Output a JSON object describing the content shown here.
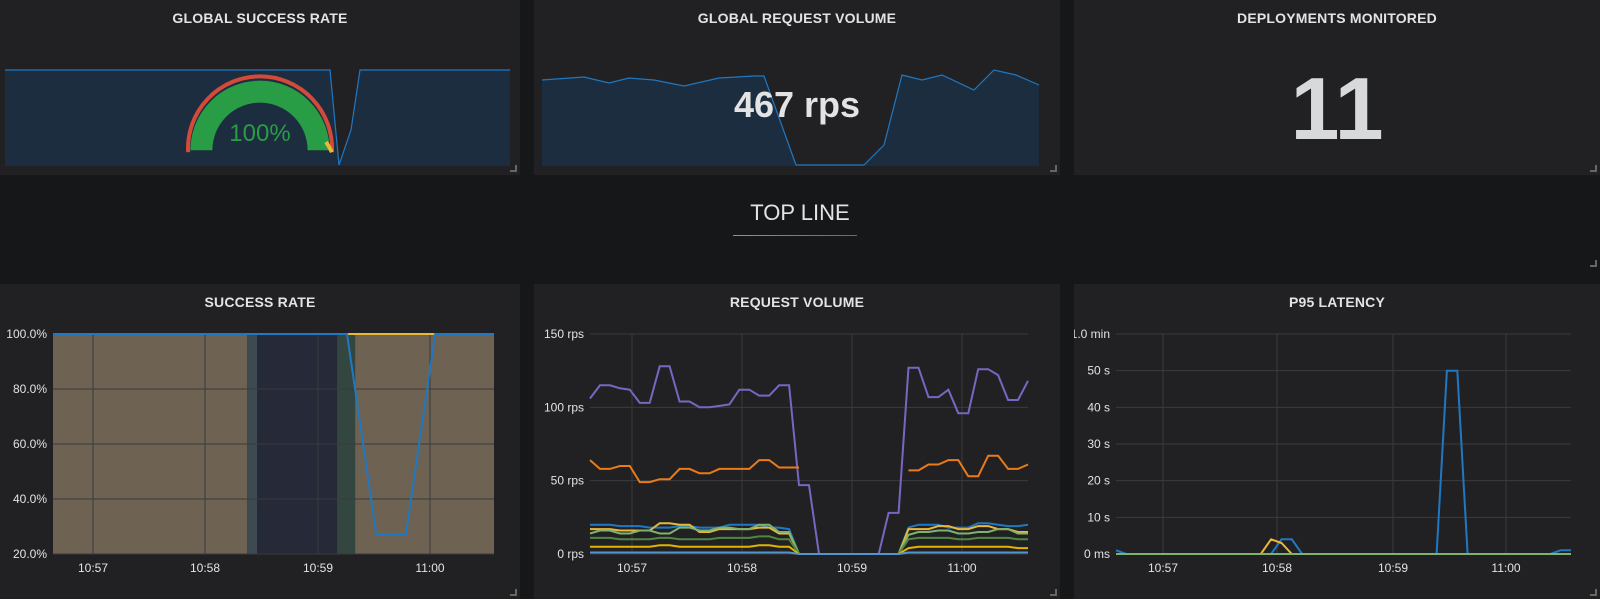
{
  "panels": {
    "global_success_rate": {
      "title": "GLOBAL SUCCESS RATE",
      "value": "100%"
    },
    "global_request_volume": {
      "title": "GLOBAL REQUEST VOLUME",
      "value": "467 rps"
    },
    "deployments_monitored": {
      "title": "DEPLOYMENTS MONITORED",
      "value": "11"
    },
    "success_rate": {
      "title": "SUCCESS RATE"
    },
    "request_volume": {
      "title": "REQUEST VOLUME"
    },
    "p95_latency": {
      "title": "P95 LATENCY"
    }
  },
  "row": {
    "title": "TOP LINE"
  },
  "colors": {
    "panel_bg": "#212124",
    "page_bg": "#161719",
    "blue": "#1f78c1",
    "green": "#299c46",
    "red": "#d44a3a",
    "orange": "#eb7b18",
    "yellow": "#eab839",
    "purple": "#7a65c1",
    "lightgreen": "#7eb26d"
  },
  "chart_data": [
    {
      "type": "area",
      "title": "SUCCESS RATE",
      "x_ticks": [
        "10:57",
        "10:58",
        "10:59",
        "11:00"
      ],
      "y_ticks": [
        "100.0%",
        "80.0%",
        "60.0%",
        "40.0%",
        "20.0%"
      ],
      "ylim": [
        20,
        100
      ],
      "series": [
        {
          "color": "#eab839",
          "values": [
            100,
            100,
            100,
            100,
            100,
            100,
            100,
            100,
            100,
            100,
            100,
            100,
            100,
            100,
            100,
            100
          ]
        },
        {
          "color": "#1f78c1",
          "values": [
            100,
            100,
            100,
            100,
            100,
            100,
            100,
            100,
            100,
            100,
            100,
            27,
            27,
            100,
            100,
            100
          ]
        }
      ]
    },
    {
      "type": "line",
      "title": "REQUEST VOLUME",
      "x_ticks": [
        "10:57",
        "10:58",
        "10:59",
        "11:00"
      ],
      "y_ticks": [
        "150 rps",
        "100 rps",
        "50 rps",
        "0 rps"
      ],
      "ylim": [
        0,
        150
      ],
      "series": [
        {
          "color": "#7a65c1",
          "values": [
            106,
            115,
            115,
            113,
            112,
            103,
            103,
            128,
            128,
            104,
            104,
            100,
            100,
            101,
            102,
            112,
            112,
            108,
            108,
            115,
            115,
            47,
            47,
            0,
            0,
            0,
            0,
            0,
            0,
            0,
            28,
            28,
            127,
            127,
            107,
            107,
            112,
            96,
            96,
            126,
            126,
            122,
            105,
            105,
            118
          ]
        },
        {
          "color": "#eb7b18",
          "values": [
            64,
            58,
            58,
            60,
            60,
            49,
            49,
            51,
            51,
            58,
            58,
            55,
            55,
            58,
            58,
            58,
            58,
            64,
            64,
            59,
            59,
            59,
            null,
            null,
            null,
            null,
            null,
            null,
            null,
            null,
            null,
            null,
            57,
            57,
            61,
            61,
            64,
            64,
            53,
            53,
            67,
            67,
            58,
            58,
            61
          ]
        },
        {
          "color": "#1f78c1",
          "values": [
            20,
            20,
            20,
            19,
            19,
            19,
            18,
            18,
            18,
            19,
            19,
            18,
            18,
            18,
            20,
            20,
            20,
            20,
            18,
            18,
            17,
            0,
            0,
            0,
            0,
            0,
            0,
            0,
            0,
            0,
            0,
            0,
            18,
            20,
            20,
            20,
            18,
            18,
            18,
            21,
            21,
            20,
            19,
            19,
            20
          ]
        },
        {
          "color": "#eab839",
          "values": [
            17,
            17,
            17,
            16,
            16,
            16,
            16,
            21,
            21,
            20,
            20,
            15,
            15,
            17,
            17,
            17,
            17,
            18,
            18,
            14,
            14,
            0,
            0,
            0,
            0,
            0,
            0,
            0,
            0,
            0,
            0,
            0,
            17,
            17,
            17,
            19,
            19,
            17,
            17,
            19,
            19,
            17,
            17,
            15,
            15
          ]
        },
        {
          "color": "#7eb26d",
          "values": [
            14,
            16,
            16,
            14,
            14,
            16,
            16,
            14,
            14,
            18,
            18,
            16,
            16,
            18,
            18,
            17,
            17,
            20,
            20,
            15,
            15,
            0,
            0,
            0,
            0,
            0,
            0,
            0,
            0,
            0,
            0,
            0,
            13,
            15,
            15,
            16,
            16,
            14,
            14,
            15,
            15,
            17,
            17,
            14,
            14
          ]
        },
        {
          "color": "#508642",
          "values": [
            11,
            11,
            11,
            10,
            10,
            10,
            10,
            11,
            11,
            10,
            10,
            10,
            10,
            11,
            11,
            11,
            11,
            12,
            12,
            10,
            10,
            0,
            0,
            0,
            0,
            0,
            0,
            0,
            0,
            0,
            0,
            0,
            10,
            11,
            11,
            11,
            11,
            10,
            10,
            11,
            11,
            11,
            11,
            10,
            10
          ]
        },
        {
          "color": "#e0b400",
          "values": [
            5,
            5,
            5,
            5,
            5,
            5,
            5,
            6,
            6,
            5,
            5,
            5,
            5,
            5,
            5,
            5,
            5,
            6,
            6,
            5,
            5,
            0,
            0,
            0,
            0,
            0,
            0,
            0,
            0,
            0,
            0,
            0,
            4,
            5,
            5,
            5,
            5,
            5,
            5,
            5,
            5,
            5,
            5,
            4,
            4
          ]
        },
        {
          "color": "#5195ce",
          "values": [
            1,
            1,
            1,
            1,
            1,
            1,
            1,
            1,
            1,
            1,
            1,
            1,
            1,
            1,
            1,
            1,
            1,
            1,
            1,
            1,
            1,
            0,
            0,
            0,
            0,
            0,
            0,
            0,
            0,
            0,
            0,
            0,
            1,
            1,
            1,
            1,
            1,
            1,
            1,
            1,
            1,
            1,
            1,
            1,
            1
          ]
        }
      ]
    },
    {
      "type": "line",
      "title": "P95 LATENCY",
      "x_ticks": [
        "10:57",
        "10:58",
        "10:59",
        "11:00"
      ],
      "y_ticks": [
        "1.0 min",
        "50 s",
        "40 s",
        "30 s",
        "20 s",
        "10 s",
        "0 ms"
      ],
      "ylim": [
        0,
        60
      ],
      "series": [
        {
          "color": "#1f78c1",
          "values": [
            1,
            0,
            0,
            0,
            0,
            0,
            0,
            0,
            0,
            0,
            0,
            0,
            0,
            0,
            0,
            0,
            4,
            4,
            0,
            0,
            0,
            0,
            0,
            0,
            0,
            0,
            0,
            0,
            0,
            0,
            0,
            0,
            50,
            50,
            0,
            0,
            0,
            0,
            0,
            0,
            0,
            0,
            0,
            1,
            1
          ]
        },
        {
          "color": "#eab839",
          "values": [
            0,
            0,
            0,
            0,
            0,
            0,
            0,
            0,
            0,
            0,
            0,
            0,
            0,
            0,
            0,
            4,
            3,
            0,
            0,
            0,
            0,
            0,
            0,
            0,
            0,
            0,
            0,
            0,
            0,
            0,
            0,
            0,
            0,
            0,
            0,
            0,
            0,
            0,
            0,
            0,
            0,
            0,
            0,
            0,
            0
          ]
        },
        {
          "color": "#7eb26d",
          "values": [
            0,
            0,
            0,
            0,
            0,
            0,
            0,
            0,
            0,
            0,
            0,
            0,
            0,
            0,
            0,
            0,
            0,
            0,
            0,
            0,
            0,
            0,
            0,
            0,
            0,
            0,
            0,
            0,
            0,
            0,
            0,
            0,
            0,
            0,
            0,
            0,
            0,
            0,
            0,
            0,
            0,
            0,
            0,
            0,
            0
          ]
        }
      ]
    }
  ]
}
